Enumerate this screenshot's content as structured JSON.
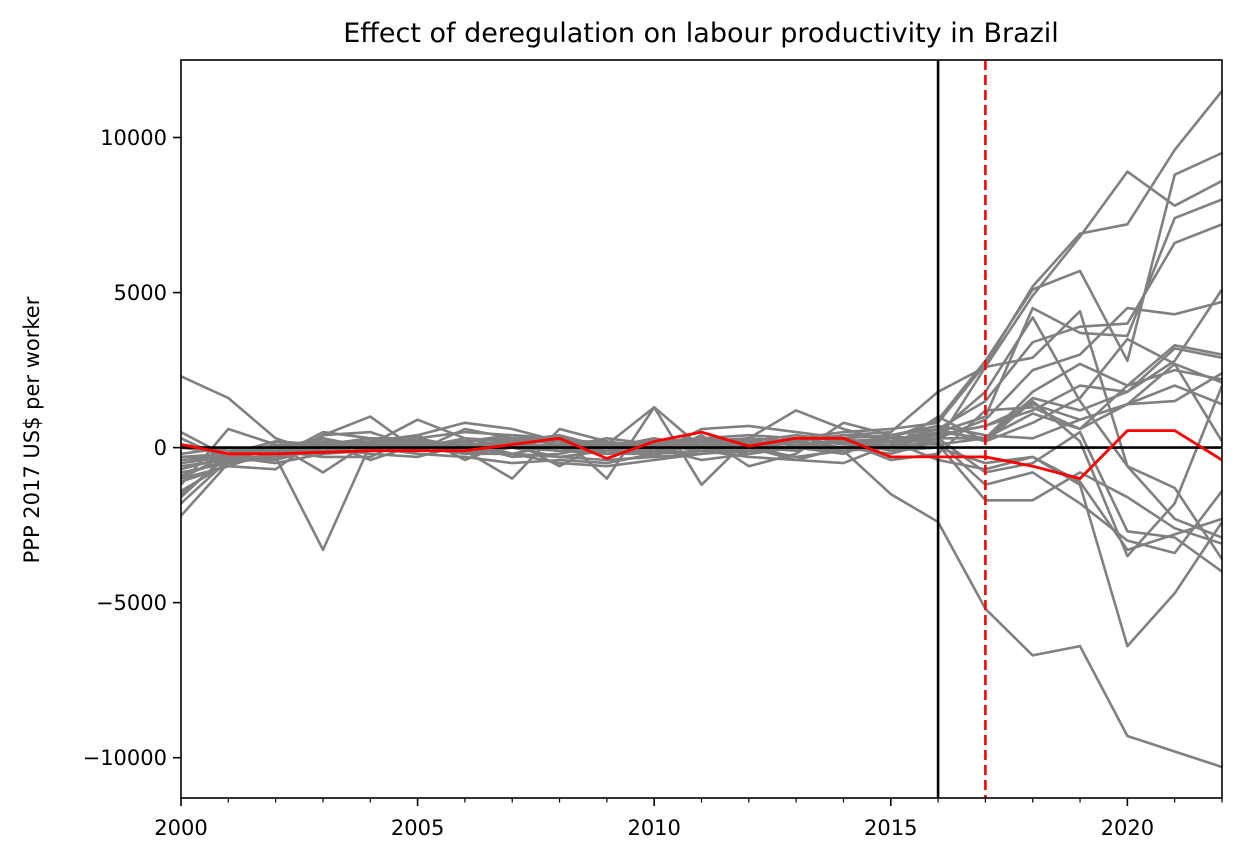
{
  "chart_data": {
    "type": "line",
    "title": "Effect of deregulation on labour productivity in Brazil",
    "xlabel": "",
    "ylabel": "PPP 2017 US$ per worker",
    "xlim": [
      2000,
      2022
    ],
    "ylim": [
      -11300,
      12500
    ],
    "x_ticks": [
      2000,
      2005,
      2010,
      2015,
      2020
    ],
    "x_minor_ticks": [
      2001,
      2002,
      2003,
      2004,
      2006,
      2007,
      2008,
      2009,
      2011,
      2012,
      2013,
      2014,
      2016,
      2017,
      2018,
      2019,
      2021,
      2022
    ],
    "y_ticks": [
      -10000,
      -5000,
      0,
      5000,
      10000
    ],
    "y_tick_labels": [
      "−10000",
      "−5000",
      "0",
      "5000",
      "10000"
    ],
    "x_tick_labels": [
      "2000",
      "2005",
      "2010",
      "2015",
      "2020"
    ],
    "grid": false,
    "legend": "none",
    "reference_lines": {
      "horizontal_y": 0,
      "vertical_solid_x": 2016,
      "vertical_dashed_x": 2017
    },
    "colors": {
      "placebo": "#808080",
      "treated": "#ff0000",
      "reference": "#000000",
      "dashed": "#ff0000"
    },
    "x": [
      2000,
      2001,
      2002,
      2003,
      2004,
      2005,
      2006,
      2007,
      2008,
      2009,
      2010,
      2011,
      2012,
      2013,
      2014,
      2015,
      2016,
      2017,
      2018,
      2019,
      2020,
      2021,
      2022
    ],
    "treated_series": {
      "values": [
        100,
        -200,
        -200,
        -150,
        -100,
        -100,
        -100,
        100,
        300,
        -350,
        200,
        500,
        50,
        300,
        300,
        -300,
        -300,
        -300,
        -600,
        -1000,
        550,
        550,
        -400
      ]
    },
    "placebo_series": [
      {
        "values": [
          2300,
          1600,
          300,
          -200,
          -100,
          200,
          -100,
          300,
          200,
          0,
          100,
          200,
          300,
          200,
          400,
          500,
          1800,
          2600,
          4900,
          6800,
          8900,
          7800,
          8600
        ]
      },
      {
        "values": [
          500,
          -300,
          -500,
          -200,
          100,
          300,
          500,
          400,
          300,
          100,
          200,
          300,
          400,
          300,
          500,
          600,
          800,
          2700,
          5200,
          6900,
          7200,
          9600,
          11500
        ]
      },
      {
        "values": [
          -2200,
          -500,
          -300,
          -3300,
          100,
          900,
          300,
          200,
          400,
          0,
          200,
          0,
          300,
          200,
          400,
          300,
          900,
          2800,
          5100,
          5700,
          2800,
          8800,
          9500
        ]
      },
      {
        "values": [
          -1800,
          -400,
          -400,
          400,
          1000,
          -100,
          600,
          300,
          200,
          100,
          1300,
          0,
          100,
          0,
          300,
          400,
          600,
          1500,
          3400,
          3900,
          4000,
          6600,
          7200
        ]
      },
      {
        "values": [
          -1500,
          -300,
          -300,
          500,
          300,
          300,
          0,
          100,
          400,
          -1000,
          1300,
          -1200,
          300,
          1200,
          600,
          200,
          500,
          1000,
          4500,
          3700,
          3600,
          7400,
          8000
        ]
      },
      {
        "values": [
          -1200,
          600,
          100,
          -800,
          200,
          400,
          800,
          600,
          200,
          200,
          -200,
          600,
          700,
          500,
          300,
          -100,
          300,
          900,
          2500,
          3000,
          4500,
          4300,
          4700
        ]
      },
      {
        "values": [
          -1000,
          -600,
          -700,
          400,
          500,
          0,
          -100,
          -1000,
          600,
          200,
          -300,
          400,
          -600,
          -200,
          800,
          400,
          100,
          300,
          1800,
          2700,
          2000,
          3300,
          3000
        ]
      },
      {
        "values": [
          -800,
          -500,
          -200,
          200,
          -400,
          100,
          200,
          300,
          100,
          -100,
          0,
          300,
          200,
          100,
          200,
          300,
          400,
          700,
          1200,
          2000,
          1800,
          3200,
          2900
        ]
      },
      {
        "values": [
          -600,
          -400,
          0,
          100,
          300,
          200,
          100,
          200,
          0,
          300,
          100,
          0,
          100,
          300,
          100,
          200,
          600,
          200,
          800,
          1600,
          3500,
          2700,
          2100
        ]
      },
      {
        "values": [
          -1100,
          -600,
          -100,
          300,
          0,
          -200,
          -300,
          -500,
          -400,
          -500,
          -200,
          -100,
          -300,
          -400,
          0,
          -200,
          200,
          2600,
          2900,
          4400,
          -600,
          -1300,
          -3600
        ]
      },
      {
        "values": [
          300,
          -400,
          -300,
          -100,
          200,
          300,
          -200,
          -200,
          -300,
          -400,
          -300,
          -200,
          -100,
          0,
          -100,
          100,
          500,
          1800,
          4200,
          1500,
          -600,
          -2300,
          -2900
        ]
      },
      {
        "values": [
          -700,
          -300,
          100,
          0,
          -200,
          -300,
          100,
          -300,
          -200,
          100,
          0,
          -400,
          -200,
          100,
          -100,
          0,
          1000,
          200,
          1500,
          200,
          -3500,
          -1800,
          2000
        ]
      },
      {
        "values": [
          -400,
          -300,
          -100,
          100,
          300,
          200,
          -100,
          100,
          0,
          -200,
          -200,
          100,
          200,
          -100,
          300,
          0,
          200,
          -1200,
          -800,
          -1800,
          -3000,
          -3400,
          -1400
        ]
      },
      {
        "values": [
          0,
          -200,
          200,
          100,
          -100,
          0,
          200,
          -200,
          100,
          0,
          100,
          -100,
          0,
          200,
          0,
          100,
          100,
          -1700,
          -1700,
          -800,
          -1600,
          -2600,
          -3100
        ]
      },
      {
        "values": [
          -300,
          -200,
          -400,
          0,
          300,
          100,
          -200,
          0,
          -100,
          0,
          300,
          0,
          -200,
          0,
          200,
          -100,
          0,
          -500,
          -300,
          -1100,
          -3300,
          -2800,
          -2300
        ]
      },
      {
        "values": [
          -500,
          -300,
          -100,
          -300,
          -300,
          400,
          -400,
          200,
          -600,
          200,
          -100,
          200,
          0,
          -400,
          -500,
          100,
          300,
          -800,
          -500,
          500,
          -2700,
          -2900,
          -4000
        ]
      },
      {
        "values": [
          -900,
          -400,
          -300,
          0,
          0,
          -100,
          0,
          -200,
          -500,
          -600,
          -400,
          -200,
          0,
          -300,
          -100,
          -1500,
          -2400,
          -5200,
          -6700,
          -6400,
          -9300,
          -9800,
          -10300
        ]
      },
      {
        "values": [
          100,
          -100,
          0,
          200,
          100,
          -100,
          -100,
          0,
          100,
          200,
          0,
          100,
          -100,
          0,
          0,
          200,
          -400,
          -700,
          -300,
          -1200,
          -6400,
          -4700,
          -2400
        ]
      },
      {
        "values": [
          -1400,
          -500,
          -200,
          0,
          200,
          100,
          200,
          400,
          200,
          -200,
          -100,
          -200,
          200,
          400,
          200,
          -400,
          -200,
          1200,
          1300,
          600,
          2000,
          2500,
          2200
        ]
      },
      {
        "values": [
          -200,
          0,
          -200,
          200,
          0,
          0,
          300,
          0,
          -300,
          -100,
          100,
          0,
          -200,
          0,
          -200,
          400,
          700,
          400,
          300,
          900,
          1400,
          1500,
          2400
        ]
      },
      {
        "values": [
          -1600,
          -200,
          0,
          300,
          -100,
          200,
          0,
          200,
          300,
          0,
          0,
          200,
          100,
          300,
          100,
          200,
          400,
          700,
          1400,
          900,
          1400,
          2000,
          1400
        ]
      },
      {
        "values": [
          -1000,
          -200,
          200,
          0,
          200,
          0,
          -200,
          100,
          0,
          100,
          200,
          100,
          0,
          -100,
          300,
          0,
          500,
          300,
          1600,
          1200,
          1800,
          2800,
          5100
        ]
      },
      {
        "values": [
          -300,
          -300,
          0,
          -100,
          200,
          -100,
          100,
          0,
          -100,
          -200,
          100,
          300,
          100,
          0,
          200,
          200,
          300,
          300,
          1100,
          600,
          1400,
          2700,
          200
        ]
      }
    ]
  }
}
